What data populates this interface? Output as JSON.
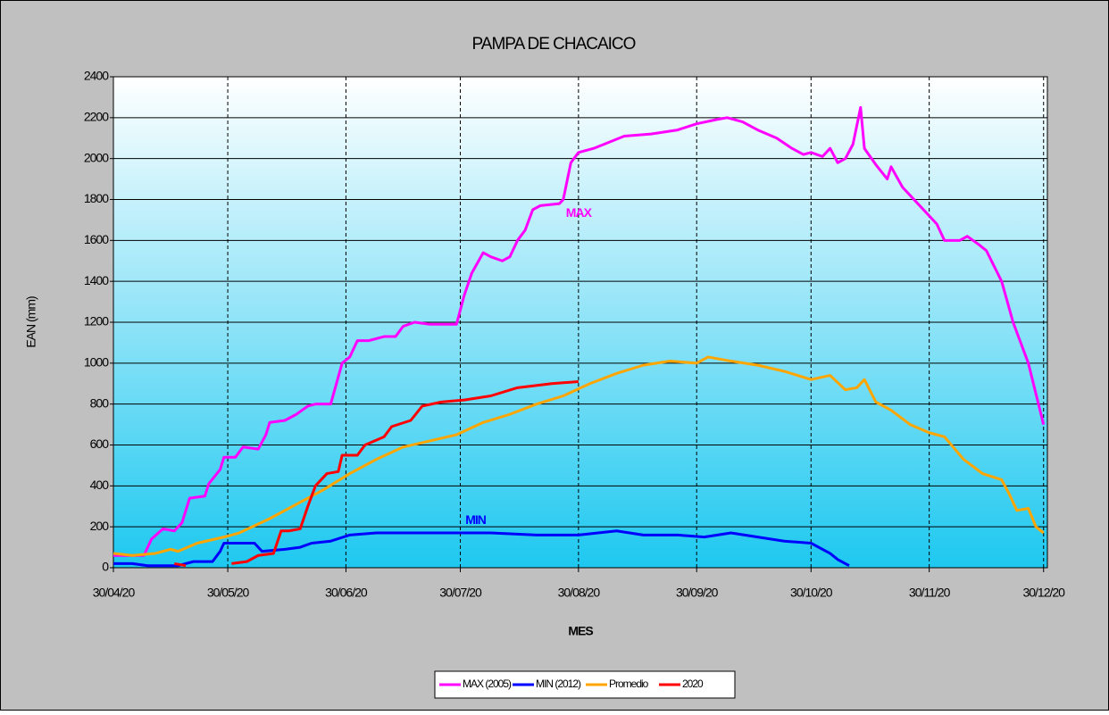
{
  "chart_data": {
    "type": "line",
    "title": "PAMPA DE CHACAICO",
    "x_label": "MES",
    "y_label": "EAN (mm)",
    "xlim": [
      0,
      245
    ],
    "ylim": [
      0,
      2400
    ],
    "xticks": [
      {
        "value": 0,
        "label": "30/04/20"
      },
      {
        "value": 30,
        "label": "30/05/20"
      },
      {
        "value": 61,
        "label": "30/06/20"
      },
      {
        "value": 91,
        "label": "30/07/20"
      },
      {
        "value": 122,
        "label": "30/08/20"
      },
      {
        "value": 153,
        "label": "30/09/20"
      },
      {
        "value": 183,
        "label": "30/10/20"
      },
      {
        "value": 214,
        "label": "30/11/20"
      },
      {
        "value": 244,
        "label": "30/12/20"
      }
    ],
    "yticks": [
      0,
      200,
      400,
      600,
      800,
      1000,
      1200,
      1400,
      1600,
      1800,
      2000,
      2200,
      2400
    ],
    "grid": true,
    "legend": "bottom",
    "annotations": [
      {
        "text": "MAX",
        "x": 122,
        "y": 1730,
        "color": "#ff00ff"
      },
      {
        "text": "MIN",
        "x": 95,
        "y": 230,
        "color": "#0000ff"
      }
    ],
    "series": [
      {
        "name": "MAX (2005)",
        "color": "#ff00ff",
        "x": [
          0,
          8,
          10,
          13,
          16,
          18,
          20,
          24,
          25,
          28,
          29,
          32,
          34,
          38,
          40,
          41,
          45,
          48,
          51,
          53,
          57,
          60,
          62,
          64,
          67,
          71,
          74,
          76,
          79,
          83,
          87,
          90,
          92,
          94,
          97,
          99,
          102,
          104,
          106,
          108,
          110,
          112,
          117,
          118,
          120,
          122,
          126,
          130,
          134,
          141,
          148,
          153,
          158,
          161,
          165,
          169,
          174,
          178,
          181,
          183,
          186,
          188,
          190,
          192,
          194,
          196,
          197,
          200,
          203,
          204,
          207,
          211,
          216,
          218,
          222,
          224,
          227,
          229,
          233,
          236,
          240,
          244
        ],
        "values": [
          60,
          60,
          140,
          190,
          180,
          220,
          340,
          350,
          410,
          480,
          540,
          540,
          590,
          580,
          650,
          710,
          720,
          750,
          790,
          800,
          800,
          1000,
          1030,
          1110,
          1110,
          1130,
          1130,
          1180,
          1200,
          1190,
          1190,
          1190,
          1330,
          1440,
          1540,
          1520,
          1500,
          1520,
          1600,
          1650,
          1750,
          1770,
          1780,
          1800,
          1980,
          2030,
          2050,
          2080,
          2110,
          2120,
          2140,
          2170,
          2190,
          2200,
          2180,
          2140,
          2100,
          2050,
          2020,
          2030,
          2010,
          2050,
          1980,
          2000,
          2070,
          2250,
          2050,
          1970,
          1900,
          1960,
          1860,
          1780,
          1680,
          1600,
          1600,
          1620,
          1580,
          1550,
          1400,
          1200,
          1000,
          700
        ]
      },
      {
        "name": "MIN (2012)",
        "color": "#0000ff",
        "x": [
          0,
          5,
          9,
          17,
          21,
          26,
          28,
          29,
          37,
          39,
          45,
          49,
          52,
          57,
          62,
          69,
          76,
          87,
          99,
          111,
          122,
          132,
          139,
          148,
          155,
          162,
          169,
          176,
          183,
          188,
          190,
          193
        ],
        "values": [
          20,
          20,
          10,
          10,
          30,
          30,
          80,
          120,
          120,
          80,
          90,
          100,
          120,
          130,
          160,
          170,
          170,
          170,
          170,
          160,
          160,
          180,
          160,
          160,
          150,
          170,
          150,
          130,
          120,
          70,
          40,
          10
        ]
      },
      {
        "name": "Promedio",
        "color": "#ffa500",
        "x": [
          0,
          5,
          11,
          15,
          17,
          22,
          29,
          33,
          41,
          48,
          55,
          62,
          69,
          76,
          83,
          90,
          97,
          104,
          111,
          118,
          125,
          132,
          139,
          146,
          153,
          156,
          162,
          169,
          176,
          183,
          188,
          192,
          195,
          197,
          200,
          204,
          209,
          214,
          218,
          223,
          228,
          233,
          235,
          237,
          240,
          242,
          244
        ],
        "values": [
          70,
          60,
          70,
          90,
          80,
          120,
          150,
          170,
          240,
          310,
          380,
          460,
          530,
          590,
          620,
          650,
          710,
          750,
          800,
          840,
          900,
          950,
          990,
          1010,
          1000,
          1030,
          1010,
          990,
          960,
          920,
          940,
          870,
          880,
          920,
          810,
          770,
          700,
          660,
          640,
          530,
          460,
          430,
          360,
          280,
          290,
          200,
          170
        ]
      },
      {
        "name": "2020",
        "color": "#ff0000",
        "x": [
          16,
          19,
          25,
          31,
          35,
          38,
          42,
          44,
          46,
          49,
          51,
          53,
          56,
          59,
          60,
          64,
          66,
          71,
          73,
          78,
          81,
          86,
          92,
          99,
          106,
          115,
          122
        ],
        "values": [
          20,
          10,
          null,
          20,
          30,
          60,
          70,
          180,
          180,
          190,
          300,
          400,
          460,
          470,
          550,
          550,
          600,
          640,
          690,
          720,
          790,
          810,
          820,
          840,
          880,
          900,
          910
        ]
      }
    ]
  }
}
